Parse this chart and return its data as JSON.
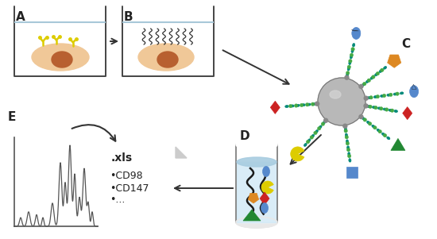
{
  "background_color": "#ffffff",
  "label_A": "A",
  "label_B": "B",
  "label_C": "C",
  "label_D": "D",
  "label_E": "E",
  "xls_text": ".xls",
  "bullet1": "•CD98",
  "bullet2": "•CD147",
  "bullet3": "•...",
  "water_color": "#a8c8d8",
  "cell_body_color": "#f0c898",
  "nucleus_color": "#b86030",
  "bead_color": "#b8b8b8",
  "teal_chain": "#008878",
  "green_node": "#44aa44",
  "arrow_color": "#333333",
  "protein_blue": "#5588cc",
  "protein_orange": "#dd8822",
  "protein_red": "#cc2222",
  "protein_green": "#228833",
  "protein_yellow": "#ddcc00",
  "protein_teal": "#228899"
}
